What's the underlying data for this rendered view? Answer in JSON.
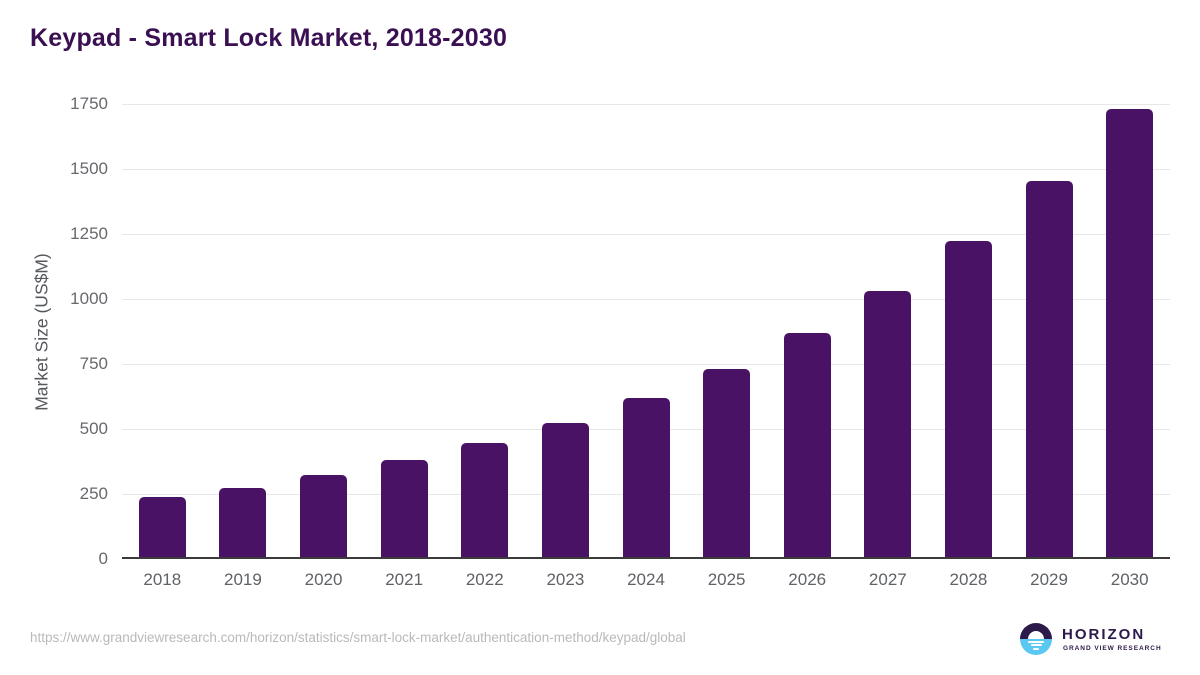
{
  "title": "Keypad - Smart Lock Market, 2018-2030",
  "source_url": "https://www.grandviewresearch.com/horizon/statistics/smart-lock-market/authentication-method/keypad/global",
  "logo": {
    "name": "HORIZON",
    "subtitle": "GRAND VIEW RESEARCH",
    "icon": "sun-over-horizon-icon",
    "dark_color": "#2b1a4a",
    "blue_color": "#5bc8f2"
  },
  "colors": {
    "title_text": "#3a1053",
    "bar": "#4a1264",
    "axis_tick_text": "#67696d",
    "gridline": "#e7e7e7",
    "axis_line": "#3b3b3b",
    "url_text": "#b9b9b9"
  },
  "chart_data": {
    "type": "bar",
    "title": "Keypad - Smart Lock Market, 2018-2030",
    "categories": [
      "2018",
      "2019",
      "2020",
      "2021",
      "2022",
      "2023",
      "2024",
      "2025",
      "2026",
      "2027",
      "2028",
      "2029",
      "2030"
    ],
    "values": [
      230,
      267,
      314,
      372,
      437,
      516,
      611,
      725,
      861,
      1022,
      1215,
      1446,
      1722
    ],
    "xlabel": "",
    "ylabel": "Market Size (US$M)",
    "ylim": [
      0,
      1750
    ],
    "yticks": [
      0,
      250,
      500,
      750,
      1000,
      1250,
      1500,
      1750
    ],
    "grid": true,
    "legend": false,
    "bar_color": "#4a1264"
  }
}
